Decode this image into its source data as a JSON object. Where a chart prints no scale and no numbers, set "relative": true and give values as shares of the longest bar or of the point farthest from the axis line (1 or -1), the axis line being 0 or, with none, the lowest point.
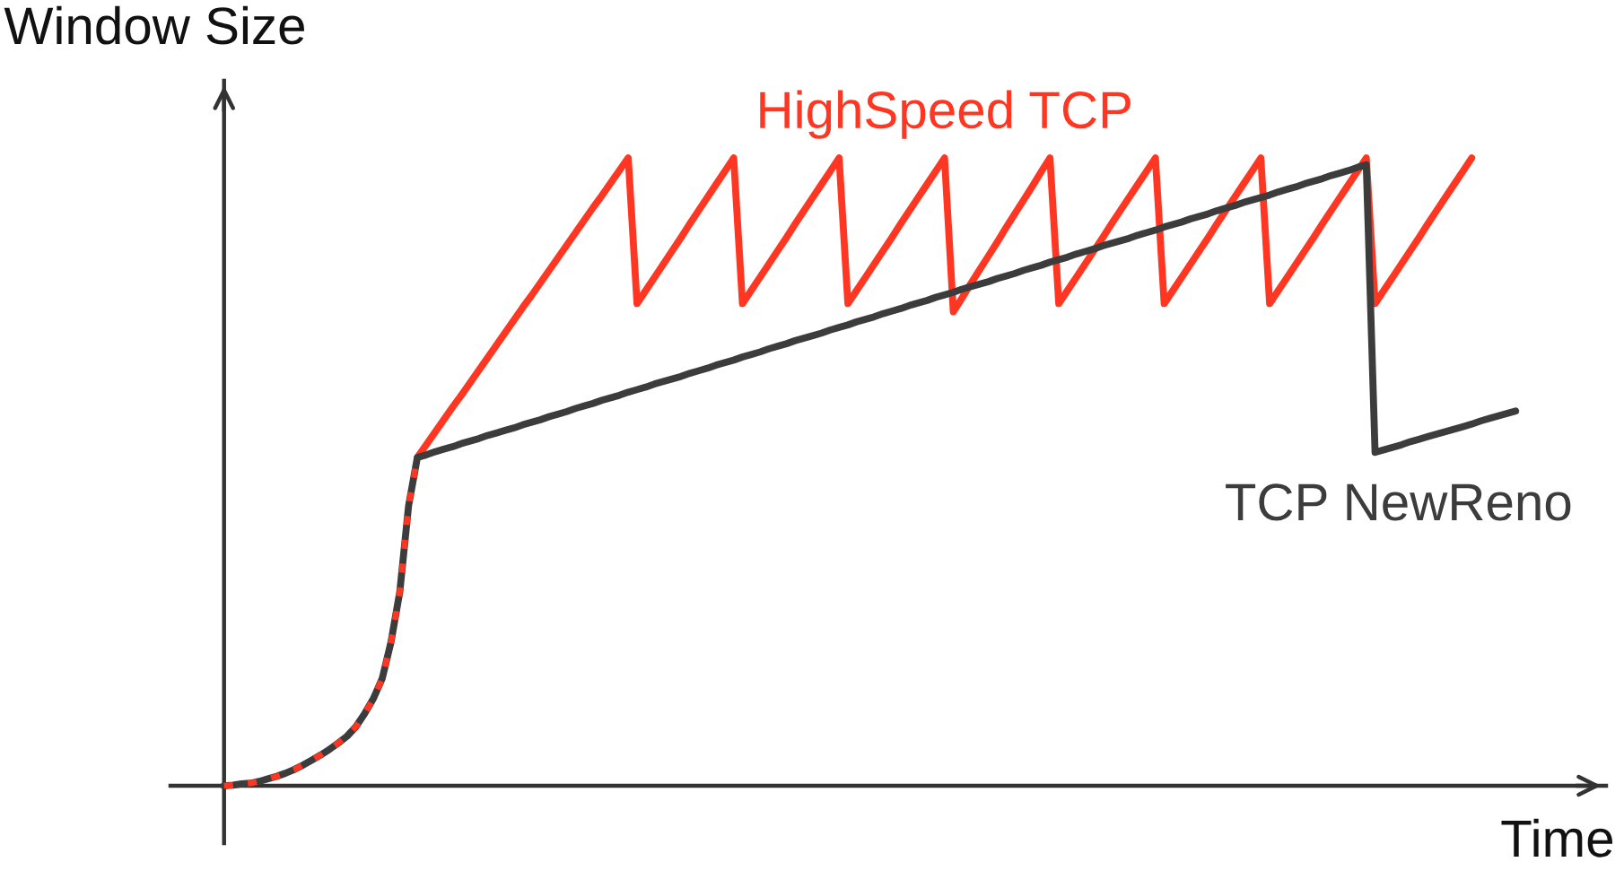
{
  "chart_data": {
    "type": "line",
    "relative": true,
    "xlabel": "Time",
    "ylabel": "Window Size",
    "categories": [
      null,
      null,
      null,
      null,
      null,
      null,
      null,
      null,
      null,
      null,
      null,
      null,
      null,
      null,
      null,
      null,
      null,
      null,
      null,
      null,
      null,
      null,
      null,
      null,
      null,
      null,
      null,
      null,
      null,
      null,
      null,
      null,
      null,
      null,
      null,
      null,
      null,
      null,
      null,
      null,
      null,
      null,
      null,
      null,
      null,
      null,
      null,
      null,
      null,
      null,
      null,
      null,
      null,
      null,
      null,
      null,
      null,
      null,
      null,
      null,
      null,
      null,
      null,
      null,
      null,
      null,
      null,
      null,
      null,
      null,
      null,
      null,
      null,
      null,
      null,
      null,
      null,
      null,
      null,
      null,
      null,
      null,
      null,
      null,
      null,
      null,
      null,
      null,
      null,
      null,
      null,
      null,
      null,
      null,
      null,
      null,
      null,
      null,
      null,
      null,
      null,
      null,
      null,
      null,
      null,
      null,
      null,
      null,
      null,
      null,
      null,
      null,
      null,
      null,
      null,
      null,
      null,
      null,
      null,
      null,
      null,
      null,
      null,
      null,
      null,
      null,
      null,
      null,
      null,
      null,
      null,
      null,
      null,
      null,
      null,
      null,
      null,
      null,
      null,
      null,
      null,
      null,
      null,
      null,
      null,
      null,
      null,
      null
    ],
    "series": [
      {
        "name": "HighSpeed TCP",
        "color": "#ff3621",
        "line_style": "solid",
        "values": [
          null,
          null,
          null,
          null,
          null,
          null,
          null,
          null,
          null,
          null,
          null,
          null,
          null,
          null,
          null,
          null,
          null,
          null,
          null,
          null,
          null,
          null,
          0.523,
          0.543,
          0.563,
          0.583,
          0.603,
          0.622,
          0.642,
          0.662,
          0.682,
          0.702,
          0.722,
          0.742,
          0.762,
          0.781,
          0.801,
          0.821,
          0.841,
          0.861,
          0.881,
          0.901,
          0.921,
          0.94,
          0.96,
          0.98,
          1,
          0.768,
          0.789,
          0.81,
          0.831,
          0.852,
          0.873,
          0.895,
          0.916,
          0.937,
          0.958,
          0.979,
          1,
          0.768,
          0.789,
          0.81,
          0.831,
          0.852,
          0.873,
          0.895,
          0.916,
          0.937,
          0.958,
          0.979,
          1,
          0.768,
          0.789,
          0.81,
          0.831,
          0.852,
          0.873,
          0.895,
          0.916,
          0.937,
          0.958,
          0.979,
          1,
          0.755,
          0.777,
          0.8,
          0.822,
          0.844,
          0.866,
          0.889,
          0.911,
          0.933,
          0.955,
          0.978,
          1,
          0.768,
          0.789,
          0.81,
          0.831,
          0.852,
          0.873,
          0.895,
          0.916,
          0.937,
          0.958,
          0.979,
          1,
          0.768,
          0.789,
          0.81,
          0.831,
          0.852,
          0.873,
          0.895,
          0.916,
          0.937,
          0.958,
          0.979,
          1,
          0.768,
          0.789,
          0.81,
          0.831,
          0.852,
          0.873,
          0.895,
          0.916,
          0.937,
          0.958,
          0.979,
          1,
          0.768,
          0.789,
          0.81,
          0.831,
          0.852,
          0.873,
          0.895,
          0.916,
          0.937,
          0.958,
          0.979,
          1,
          null,
          null,
          null,
          null,
          null
        ]
      },
      {
        "name": "TCP NewReno",
        "color": "#3c3c3c",
        "line_style": "solid",
        "values": [
          0,
          0.001,
          0.003,
          0.004,
          0.007,
          0.011,
          0.015,
          0.02,
          0.026,
          0.033,
          0.041,
          0.049,
          0.058,
          0.068,
          0.079,
          0.094,
          0.115,
          0.139,
          0.171,
          0.229,
          0.309,
          0.446,
          0.523,
          0.527,
          0.532,
          0.536,
          0.54,
          0.545,
          0.549,
          0.553,
          0.558,
          0.562,
          0.566,
          0.57,
          0.575,
          0.579,
          0.583,
          0.588,
          0.592,
          0.596,
          0.601,
          0.605,
          0.609,
          0.614,
          0.618,
          0.622,
          0.627,
          0.631,
          0.635,
          0.64,
          0.644,
          0.648,
          0.652,
          0.657,
          0.661,
          0.665,
          0.67,
          0.674,
          0.678,
          0.683,
          0.687,
          0.691,
          0.696,
          0.7,
          0.704,
          0.709,
          0.713,
          0.717,
          0.721,
          0.726,
          0.73,
          0.734,
          0.739,
          0.743,
          0.747,
          0.752,
          0.756,
          0.76,
          0.765,
          0.769,
          0.773,
          0.778,
          0.782,
          0.786,
          0.791,
          0.795,
          0.799,
          0.803,
          0.808,
          0.812,
          0.816,
          0.821,
          0.825,
          0.829,
          0.834,
          0.838,
          0.842,
          0.847,
          0.851,
          0.855,
          0.86,
          0.864,
          0.868,
          0.872,
          0.877,
          0.881,
          0.885,
          0.89,
          0.894,
          0.898,
          0.903,
          0.907,
          0.911,
          0.916,
          0.92,
          0.924,
          0.929,
          0.933,
          0.937,
          0.941,
          0.946,
          0.95,
          0.954,
          0.959,
          0.963,
          0.967,
          0.972,
          0.976,
          0.98,
          0.985,
          0.989,
          0.531,
          0.535,
          0.539,
          0.543,
          0.548,
          0.552,
          0.556,
          0.56,
          0.564,
          0.568,
          0.572,
          0.576,
          0.581,
          0.585,
          0.589,
          0.593,
          0.597
        ]
      },
      {
        "color": "#ff3621",
        "line_style": "dashed",
        "values": [
          0,
          0.001,
          0.003,
          0.004,
          0.007,
          0.011,
          0.015,
          0.02,
          0.026,
          0.033,
          0.041,
          0.049,
          0.058,
          0.068,
          0.079,
          0.094,
          0.115,
          0.139,
          0.171,
          0.229,
          0.309,
          0.446,
          0.523,
          null,
          null,
          null,
          null,
          null,
          null,
          null,
          null,
          null,
          null,
          null,
          null,
          null,
          null,
          null,
          null,
          null,
          null,
          null,
          null,
          null,
          null,
          null,
          null,
          null,
          null,
          null,
          null,
          null,
          null,
          null,
          null,
          null,
          null,
          null,
          null,
          null,
          null,
          null,
          null,
          null,
          null,
          null,
          null,
          null,
          null,
          null,
          null,
          null,
          null,
          null,
          null,
          null,
          null,
          null,
          null,
          null,
          null,
          null,
          null,
          null,
          null,
          null,
          null,
          null,
          null,
          null,
          null,
          null,
          null,
          null,
          null,
          null,
          null,
          null,
          null,
          null,
          null,
          null,
          null,
          null,
          null,
          null,
          null,
          null,
          null,
          null,
          null,
          null,
          null,
          null,
          null,
          null,
          null,
          null,
          null,
          null,
          null,
          null,
          null,
          null,
          null,
          null,
          null,
          null,
          null,
          null,
          null,
          null,
          null,
          null,
          null,
          null,
          null,
          null,
          null,
          null,
          null,
          null,
          null,
          null,
          null,
          null,
          null,
          null
        ]
      }
    ]
  }
}
